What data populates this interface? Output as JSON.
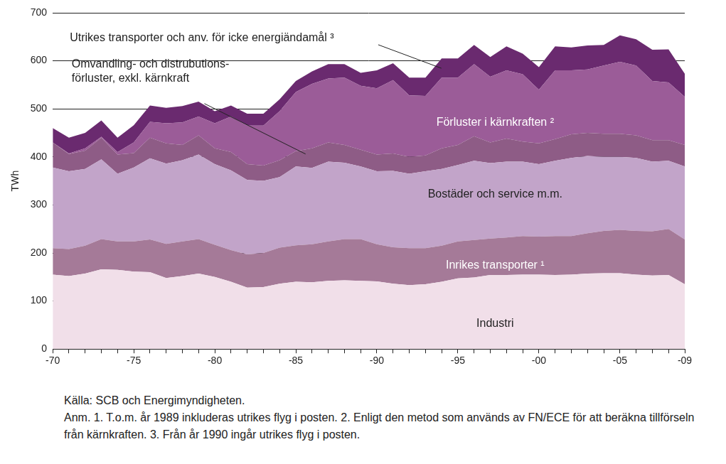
{
  "chart_data": {
    "type": "area",
    "stacked": true,
    "grid": true,
    "y_label": "TWh",
    "ylim": [
      0,
      700
    ],
    "yticks": [
      0,
      100,
      200,
      300,
      400,
      500,
      600,
      700
    ],
    "categories": [
      "-70",
      null,
      null,
      null,
      null,
      "-75",
      null,
      null,
      null,
      null,
      "-80",
      null,
      null,
      null,
      null,
      "-85",
      null,
      null,
      null,
      null,
      "-90",
      null,
      null,
      null,
      null,
      "-95",
      null,
      null,
      null,
      null,
      "-00",
      null,
      null,
      null,
      null,
      "-05",
      null,
      null,
      null,
      "-09"
    ],
    "series": [
      {
        "name": "Industri",
        "color": "#f1dfe9",
        "values": [
          155,
          152,
          157,
          166,
          165,
          161,
          160,
          148,
          152,
          157,
          150,
          140,
          128,
          129,
          136,
          140,
          139,
          142,
          143,
          142,
          141,
          136,
          133,
          135,
          140,
          147,
          149,
          154,
          154,
          155,
          155,
          154,
          155,
          157,
          158,
          158,
          155,
          153,
          154,
          135
        ]
      },
      {
        "name": "Inrikes transporter ¹",
        "color": "#a57a98",
        "values": [
          55,
          56,
          58,
          63,
          59,
          63,
          68,
          71,
          72,
          72,
          67,
          66,
          69,
          71,
          75,
          76,
          79,
          82,
          86,
          87,
          77,
          76,
          77,
          75,
          75,
          77,
          78,
          76,
          78,
          80,
          79,
          81,
          80,
          84,
          88,
          90,
          91,
          92,
          96,
          93
        ]
      },
      {
        "name": "Bostäder och service m.m.",
        "color": "#c2a4c9",
        "values": [
          168,
          162,
          160,
          166,
          141,
          154,
          169,
          167,
          169,
          176,
          168,
          166,
          155,
          150,
          147,
          164,
          159,
          166,
          159,
          151,
          152,
          159,
          155,
          160,
          160,
          159,
          165,
          157,
          158,
          155,
          151,
          157,
          163,
          161,
          154,
          152,
          152,
          145,
          142,
          152
        ]
      },
      {
        "name": "Omvandling- och distrubutions-\nförluster, exkl. kärnkraft",
        "color": "#8e5c86",
        "values": [
          52,
          36,
          38,
          45,
          40,
          30,
          43,
          42,
          32,
          40,
          33,
          38,
          33,
          32,
          35,
          32,
          41,
          40,
          37,
          35,
          35,
          36,
          35,
          33,
          43,
          42,
          51,
          43,
          48,
          42,
          43,
          45,
          49,
          48,
          48,
          48,
          47,
          45,
          43,
          45
        ]
      },
      {
        "name": "Förluster i kärnkraften ²",
        "color": "#9b5c98",
        "values": [
          0,
          1,
          5,
          2,
          5,
          22,
          33,
          42,
          47,
          39,
          52,
          74,
          80,
          83,
          102,
          123,
          134,
          133,
          140,
          133,
          138,
          153,
          128,
          124,
          147,
          140,
          150,
          137,
          142,
          140,
          112,
          143,
          133,
          132,
          142,
          150,
          145,
          123,
          120,
          100
        ]
      },
      {
        "name": "Utrikes transporter och anv. för icke energiändamål ³",
        "color": "#6a2a6f",
        "values": [
          30,
          33,
          32,
          34,
          30,
          36,
          34,
          32,
          34,
          31,
          25,
          23,
          25,
          25,
          25,
          23,
          26,
          30,
          28,
          27,
          37,
          35,
          37,
          38,
          40,
          40,
          40,
          41,
          50,
          43,
          47,
          50,
          48,
          50,
          43,
          55,
          55,
          65,
          69,
          48
        ]
      }
    ],
    "source": "Källa: SCB och Energimyndigheten.",
    "note": "Anm. 1. T.o.m. år 1989 inkluderas utrikes flyg i posten. 2. Enligt den metod som används av FN/ECE för att beräkna tillförseln från kärnkraften. 3. Från år 1990 ingår utrikes flyg i posten."
  }
}
